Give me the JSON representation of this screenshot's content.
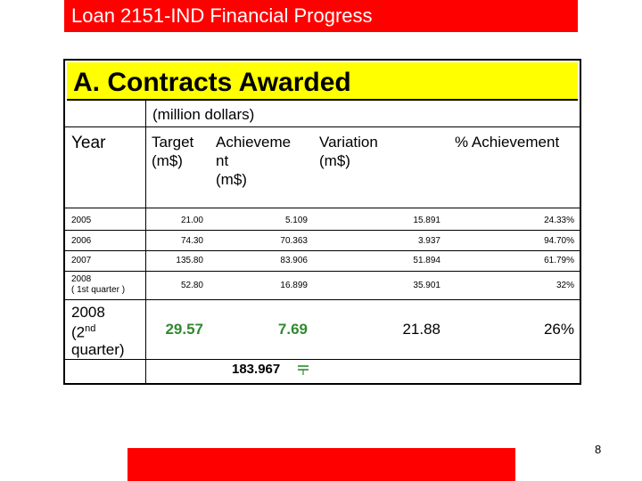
{
  "title": "Loan 2151-IND Financial Progress",
  "section": "A. Contracts Awarded",
  "unit_label": "(million dollars)",
  "headers": {
    "year": "Year",
    "target_line1": "Target",
    "target_line2": "(m$)",
    "achievement_line1": "Achieveme",
    "achievement_line2": "nt",
    "achievement_line3": "(m$)",
    "variation_line1": "Variation",
    "variation_line2": "(m$)",
    "pct": "% Achievement"
  },
  "rows": [
    {
      "year": "2005",
      "target": "21.00",
      "achievement": "5.109",
      "variation": "15.891",
      "pct": "24.33%"
    },
    {
      "year": "2006",
      "target": "74.30",
      "achievement": "70.363",
      "variation": "3.937",
      "pct": "94.70%"
    },
    {
      "year": "2007",
      "target": "135.80",
      "achievement": "83.906",
      "variation": "51.894",
      "pct": "61.79%"
    },
    {
      "year_line1": "2008",
      "year_line2": "( 1st quarter )",
      "target": "52.80",
      "achievement": "16.899",
      "variation": "35.901",
      "pct": "32%"
    }
  ],
  "current": {
    "year_line1": "2008",
    "year_line2_pre": "(2",
    "year_line2_sup": "nd",
    "year_line3": "quarter)",
    "target": "29.57",
    "achievement": "7.69",
    "variation": "21.88",
    "pct": "26%"
  },
  "total": "183.967",
  "page_number": "8",
  "colors": {
    "brand_red": "#ff0000",
    "section_yellow": "#ffff00",
    "value_green": "#2f8a2f"
  }
}
